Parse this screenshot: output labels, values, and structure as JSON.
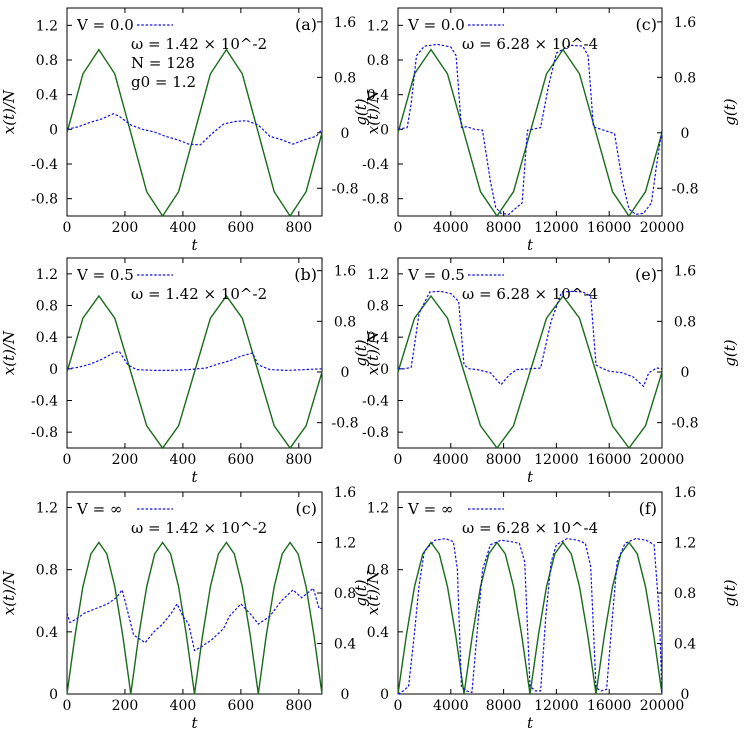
{
  "colors": {
    "x_series": "#1010e8",
    "g_series": "#1a6b1a",
    "axes": "#000000"
  },
  "axis_labels": {
    "x": "t",
    "y_left": "x(t)/N",
    "y_right": "g(t)"
  },
  "chart_data": [
    {
      "panel": "(a)",
      "type": "line",
      "legend": [
        "V = 0.0",
        "ω = 1.42 × 10^-2",
        "N = 128",
        "g0 = 1.2"
      ],
      "xlim": [
        0,
        880
      ],
      "ylim_left": [
        -1.0,
        1.4
      ],
      "ylim_right": [
        -1.2,
        1.8
      ],
      "xticks": [
        "0",
        "200",
        "400",
        "600",
        "800"
      ],
      "xtick_values": [
        0,
        200,
        400,
        600,
        800
      ],
      "yticks_left": [
        "1.2",
        "0.8",
        "0.4",
        "0",
        "-0.4",
        "-0.8"
      ],
      "ytick_values_left": [
        1.2,
        0.8,
        0.4,
        0,
        -0.4,
        -0.8
      ],
      "yticks_right": [
        "1.6",
        "0.8",
        "0",
        "-0.8"
      ],
      "ytick_values_right": [
        1.6,
        0.8,
        0,
        -0.8
      ],
      "series": [
        {
          "axis": "right",
          "x": [
            0,
            55,
            110,
            165,
            220,
            275,
            330,
            385,
            440,
            495,
            550,
            605,
            660,
            715,
            770,
            825,
            880
          ],
          "values": [
            0,
            0.85,
            1.2,
            0.85,
            0,
            -0.85,
            -1.2,
            -0.85,
            0,
            0.85,
            1.2,
            0.85,
            0,
            -0.85,
            -1.2,
            -0.85,
            0
          ]
        },
        {
          "axis": "left",
          "x": [
            0,
            40,
            80,
            120,
            160,
            180,
            220,
            260,
            300,
            340,
            380,
            420,
            460,
            500,
            540,
            580,
            620,
            660,
            700,
            740,
            780,
            820,
            860,
            880
          ],
          "values": [
            0,
            0.03,
            0.08,
            0.12,
            0.18,
            0.15,
            0.05,
            0.0,
            -0.03,
            -0.08,
            -0.12,
            -0.17,
            -0.18,
            -0.05,
            0.06,
            0.09,
            0.1,
            0.05,
            -0.08,
            -0.12,
            -0.17,
            -0.12,
            -0.08,
            0.0
          ]
        }
      ]
    },
    {
      "panel": "(c)",
      "type": "line",
      "legend": [
        "V = 0.0",
        "ω = 6.28 × 10^-4"
      ],
      "xlim": [
        0,
        20000
      ],
      "ylim_left": [
        -1.0,
        1.4
      ],
      "ylim_right": [
        -1.2,
        1.8
      ],
      "xticks": [
        "0",
        "4000",
        "8000",
        "12000",
        "16000",
        "20000"
      ],
      "xtick_values": [
        0,
        4000,
        8000,
        12000,
        16000,
        20000
      ],
      "yticks_left": [
        "1.2",
        "0.8",
        "0.4",
        "0",
        "-0.4",
        "-0.8"
      ],
      "ytick_values_left": [
        1.2,
        0.8,
        0.4,
        0,
        -0.4,
        -0.8
      ],
      "yticks_right": [
        "1.6",
        "0.8",
        "0",
        "-0.8"
      ],
      "ytick_values_right": [
        1.6,
        0.8,
        0,
        -0.8
      ],
      "series": [
        {
          "axis": "right",
          "x": [
            0,
            1250,
            2500,
            3750,
            5000,
            6250,
            7500,
            8750,
            10000,
            11250,
            12500,
            13750,
            15000,
            16250,
            17500,
            18750,
            20000
          ],
          "values": [
            0,
            0.85,
            1.2,
            0.85,
            0,
            -0.85,
            -1.2,
            -0.85,
            0,
            0.85,
            1.2,
            0.85,
            0,
            -0.85,
            -1.2,
            -0.85,
            0
          ]
        },
        {
          "axis": "left",
          "x": [
            0,
            300,
            700,
            1000,
            1400,
            2000,
            3000,
            4000,
            4400,
            4800,
            5200,
            5800,
            6400,
            7000,
            7400,
            7800,
            8400,
            9000,
            9400,
            9800,
            10200,
            10800,
            11400,
            12000,
            13000,
            14000,
            14400,
            14800,
            15200,
            15800,
            16400,
            17000,
            17500,
            18000,
            18600,
            19200,
            19600,
            20000
          ],
          "values": [
            0,
            0.01,
            0.02,
            0.3,
            0.85,
            0.96,
            0.98,
            0.95,
            0.85,
            0.02,
            0.03,
            0.0,
            -0.01,
            -0.6,
            -0.9,
            -0.97,
            -0.98,
            -0.9,
            -0.85,
            -0.01,
            0.0,
            0.02,
            0.5,
            0.88,
            0.97,
            0.96,
            0.85,
            0.03,
            0.01,
            -0.02,
            -0.05,
            -0.6,
            -0.92,
            -0.98,
            -0.97,
            -0.85,
            -0.4,
            0.0
          ]
        }
      ]
    },
    {
      "panel": "(b)",
      "type": "line",
      "legend": [
        "V = 0.5",
        "ω = 1.42 × 10^-2"
      ],
      "xlim": [
        0,
        880
      ],
      "ylim_left": [
        -1.0,
        1.4
      ],
      "ylim_right": [
        -1.2,
        1.8
      ],
      "xticks": [
        "0",
        "200",
        "400",
        "600",
        "800"
      ],
      "xtick_values": [
        0,
        200,
        400,
        600,
        800
      ],
      "yticks_left": [
        "1.2",
        "0.8",
        "0.4",
        "0",
        "-0.4",
        "-0.8"
      ],
      "ytick_values_left": [
        1.2,
        0.8,
        0.4,
        0,
        -0.4,
        -0.8
      ],
      "yticks_right": [
        "1.6",
        "0.8",
        "0",
        "-0.8"
      ],
      "ytick_values_right": [
        1.6,
        0.8,
        0,
        -0.8
      ],
      "series": [
        {
          "axis": "right",
          "x": [
            0,
            55,
            110,
            165,
            220,
            275,
            330,
            385,
            440,
            495,
            550,
            605,
            660,
            715,
            770,
            825,
            880
          ],
          "values": [
            0,
            0.85,
            1.2,
            0.85,
            0,
            -0.85,
            -1.2,
            -0.85,
            0,
            0.85,
            1.2,
            0.85,
            0,
            -0.85,
            -1.2,
            -0.85,
            0
          ]
        },
        {
          "axis": "left",
          "x": [
            0,
            40,
            80,
            120,
            160,
            180,
            210,
            240,
            300,
            360,
            420,
            480,
            520,
            560,
            600,
            640,
            660,
            700,
            760,
            820,
            880
          ],
          "values": [
            0,
            0.02,
            0.06,
            0.12,
            0.2,
            0.22,
            0.05,
            -0.01,
            -0.02,
            -0.02,
            -0.01,
            0.01,
            0.06,
            0.1,
            0.16,
            0.2,
            0.05,
            -0.01,
            -0.02,
            -0.01,
            0.0
          ]
        }
      ]
    },
    {
      "panel": "(e)",
      "type": "line",
      "legend": [
        "V = 0.5",
        "ω = 6.28 × 10^-4"
      ],
      "xlim": [
        0,
        20000
      ],
      "ylim_left": [
        -1.0,
        1.4
      ],
      "ylim_right": [
        -1.2,
        1.8
      ],
      "xticks": [
        "0",
        "4000",
        "8000",
        "12000",
        "16000",
        "20000"
      ],
      "xtick_values": [
        0,
        4000,
        8000,
        12000,
        16000,
        20000
      ],
      "yticks_left": [
        "1.2",
        "0.8",
        "0.4",
        "0",
        "-0.4",
        "-0.8"
      ],
      "ytick_values_left": [
        1.2,
        0.8,
        0.4,
        0,
        -0.4,
        -0.8
      ],
      "yticks_right": [
        "1.6",
        "0.8",
        "0",
        "-0.8"
      ],
      "ytick_values_right": [
        1.6,
        0.8,
        0,
        -0.8
      ],
      "series": [
        {
          "axis": "right",
          "x": [
            0,
            1250,
            2500,
            3750,
            5000,
            6250,
            7500,
            8750,
            10000,
            11250,
            12500,
            13750,
            15000,
            16250,
            17500,
            18750,
            20000
          ],
          "values": [
            0,
            0.85,
            1.2,
            0.85,
            0,
            -0.85,
            -1.2,
            -0.85,
            0,
            0.85,
            1.2,
            0.85,
            0,
            -0.85,
            -1.2,
            -0.85,
            0
          ]
        },
        {
          "axis": "left",
          "x": [
            0,
            500,
            1000,
            1600,
            2400,
            3200,
            4000,
            4600,
            5000,
            5400,
            6000,
            7000,
            7800,
            8400,
            9000,
            10000,
            10800,
            11600,
            12400,
            13200,
            14000,
            14600,
            15000,
            15400,
            16000,
            17000,
            17800,
            18600,
            19000,
            19600,
            20000
          ],
          "values": [
            0,
            0.0,
            0.02,
            0.7,
            0.97,
            0.98,
            0.95,
            0.85,
            0.05,
            0.0,
            -0.01,
            -0.05,
            -0.2,
            -0.08,
            -0.01,
            0.0,
            0.01,
            0.6,
            0.97,
            0.98,
            0.97,
            0.92,
            0.05,
            0.01,
            -0.03,
            -0.05,
            -0.1,
            -0.22,
            -0.05,
            0.01,
            0.0
          ]
        }
      ]
    },
    {
      "panel": "(c)",
      "type": "line",
      "legend": [
        "V = ∞",
        "ω = 1.42 × 10^-2"
      ],
      "xlim": [
        0,
        880
      ],
      "ylim_left": [
        0,
        1.3
      ],
      "ylim_right": [
        0,
        1.6
      ],
      "xticks": [
        "0",
        "200",
        "400",
        "600",
        "800"
      ],
      "xtick_values": [
        0,
        200,
        400,
        600,
        800
      ],
      "yticks_left": [
        "1.2",
        "0.8",
        "0.4",
        "0"
      ],
      "ytick_values_left": [
        1.2,
        0.8,
        0.4,
        0
      ],
      "yticks_right": [
        "1.6",
        "1.2",
        "0.8",
        "0.4",
        "0"
      ],
      "ytick_values_right": [
        1.6,
        1.2,
        0.8,
        0.4,
        0
      ],
      "series": [
        {
          "axis": "right",
          "x": [
            0,
            27.5,
            55,
            82.5,
            110,
            137.5,
            165,
            192.5,
            220,
            247.5,
            275,
            302.5,
            330,
            357.5,
            385,
            412.5,
            440,
            467.5,
            495,
            522.5,
            550,
            577.5,
            605,
            632.5,
            660,
            687.5,
            715,
            742.5,
            770,
            797.5,
            825,
            852.5,
            880
          ],
          "values": [
            0,
            0.46,
            0.85,
            1.11,
            1.2,
            1.11,
            0.85,
            0.46,
            0,
            0.46,
            0.85,
            1.11,
            1.2,
            1.11,
            0.85,
            0.46,
            0,
            0.46,
            0.85,
            1.11,
            1.2,
            1.11,
            0.85,
            0.46,
            0,
            0.46,
            0.85,
            1.11,
            1.2,
            1.11,
            0.85,
            0.46,
            0
          ]
        },
        {
          "axis": "left",
          "x": [
            0,
            10,
            30,
            60,
            100,
            140,
            170,
            190,
            200,
            230,
            270,
            300,
            330,
            360,
            380,
            400,
            420,
            440,
            460,
            500,
            540,
            560,
            600,
            640,
            660,
            700,
            740,
            780,
            810,
            850,
            870,
            880
          ],
          "values": [
            0.52,
            0.46,
            0.48,
            0.52,
            0.55,
            0.58,
            0.62,
            0.67,
            0.6,
            0.38,
            0.33,
            0.4,
            0.45,
            0.52,
            0.58,
            0.5,
            0.45,
            0.28,
            0.3,
            0.35,
            0.42,
            0.5,
            0.58,
            0.5,
            0.45,
            0.5,
            0.6,
            0.67,
            0.62,
            0.68,
            0.55,
            0.55
          ]
        }
      ]
    },
    {
      "panel": "(f)",
      "type": "line",
      "legend": [
        "V = ∞",
        "ω = 6.28 × 10^-4"
      ],
      "xlim": [
        0,
        20000
      ],
      "ylim_left": [
        0,
        1.3
      ],
      "ylim_right": [
        0,
        1.6
      ],
      "xticks": [
        "0",
        "4000",
        "8000",
        "12000",
        "16000",
        "20000"
      ],
      "xtick_values": [
        0,
        4000,
        8000,
        12000,
        16000,
        20000
      ],
      "yticks_left": [
        "1.2",
        "0.8",
        "0.4",
        "0"
      ],
      "ytick_values_left": [
        1.2,
        0.8,
        0.4,
        0
      ],
      "yticks_right": [
        "1.6",
        "1.2",
        "0.8",
        "0.4",
        "0"
      ],
      "ytick_values_right": [
        1.6,
        1.2,
        0.8,
        0.4,
        0
      ],
      "series": [
        {
          "axis": "right",
          "x": [
            0,
            625,
            1250,
            1875,
            2500,
            3125,
            3750,
            4375,
            5000,
            5625,
            6250,
            6875,
            7500,
            8125,
            8750,
            9375,
            10000,
            10625,
            11250,
            11875,
            12500,
            13125,
            13750,
            14375,
            15000,
            15625,
            16250,
            16875,
            17500,
            18125,
            18750,
            19375,
            20000
          ],
          "values": [
            0,
            0.46,
            0.85,
            1.11,
            1.2,
            1.11,
            0.85,
            0.46,
            0,
            0.46,
            0.85,
            1.11,
            1.2,
            1.11,
            0.85,
            0.46,
            0,
            0.46,
            0.85,
            1.11,
            1.2,
            1.11,
            0.85,
            0.46,
            0,
            0.46,
            0.85,
            1.11,
            1.2,
            1.11,
            0.85,
            0.46,
            0
          ]
        },
        {
          "axis": "left",
          "x": [
            0,
            400,
            800,
            1200,
            1600,
            2000,
            2800,
            3600,
            4200,
            4500,
            4800,
            5200,
            5600,
            6000,
            6400,
            7000,
            7800,
            8600,
            9200,
            9600,
            10000,
            10400,
            10800,
            11200,
            11600,
            12000,
            12800,
            13600,
            14200,
            14600,
            15000,
            15400,
            15800,
            16200,
            16600,
            17200,
            18000,
            18800,
            19400,
            19800,
            20000
          ],
          "values": [
            0.0,
            0.02,
            0.05,
            0.35,
            0.7,
            0.92,
            0.99,
            1.0,
            0.98,
            0.8,
            0.05,
            0.02,
            0.01,
            0.4,
            0.8,
            0.96,
            0.99,
            0.98,
            0.97,
            0.85,
            0.05,
            0.02,
            0.02,
            0.5,
            0.85,
            0.96,
            1.0,
            0.99,
            0.97,
            0.82,
            0.04,
            0.02,
            0.03,
            0.45,
            0.85,
            0.97,
            1.0,
            0.99,
            0.96,
            0.5,
            0.0
          ]
        }
      ]
    }
  ]
}
